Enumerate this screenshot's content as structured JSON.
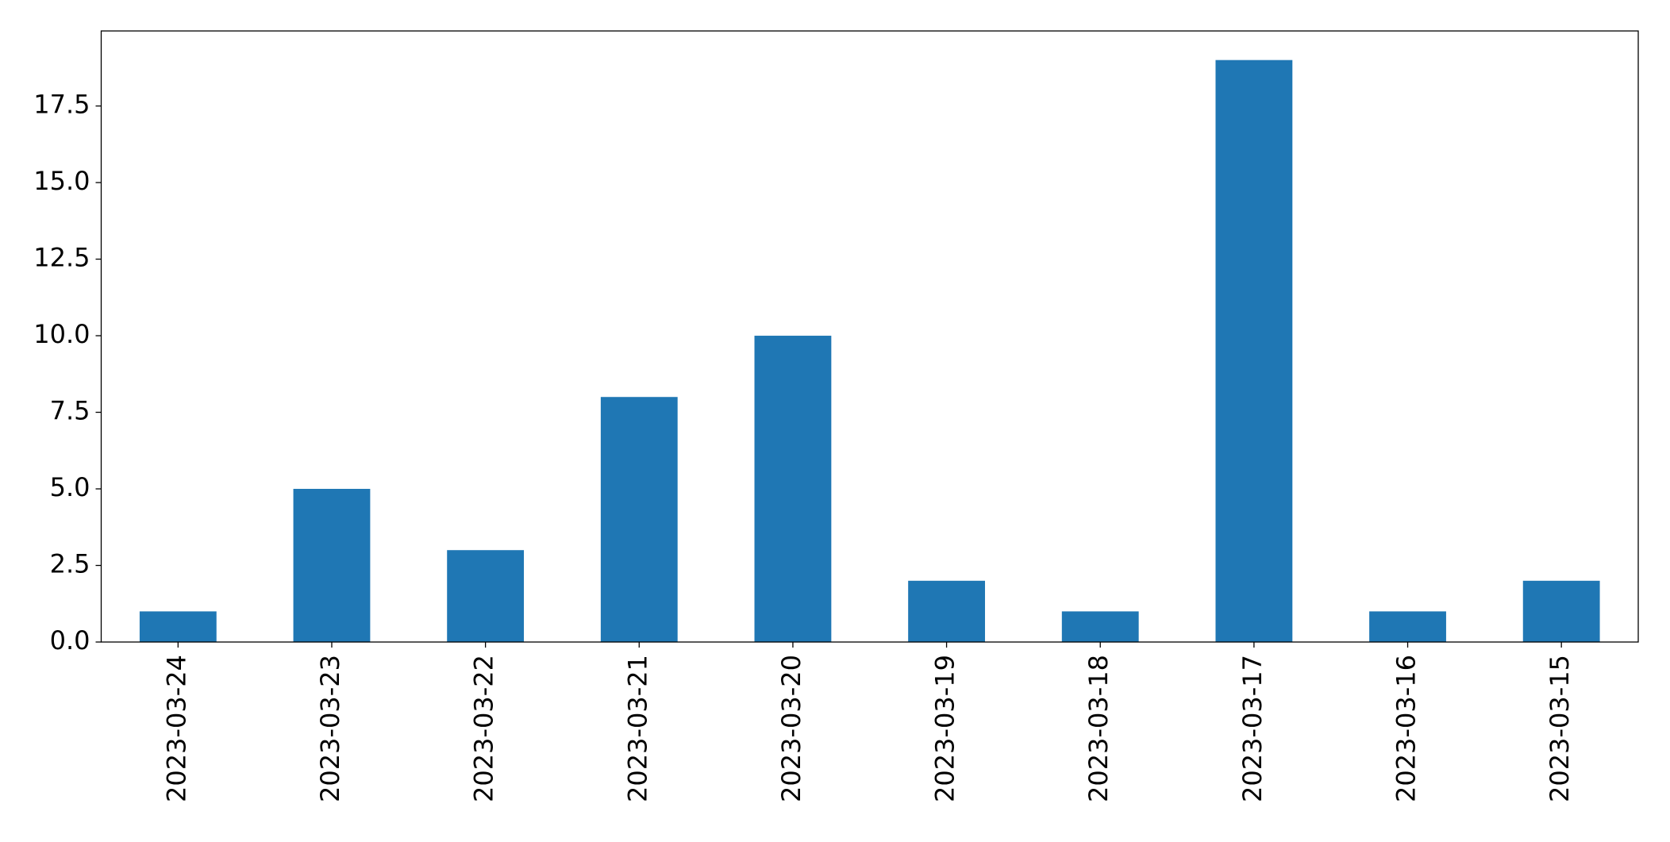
{
  "chart_data": {
    "type": "bar",
    "categories": [
      "2023-03-24",
      "2023-03-23",
      "2023-03-22",
      "2023-03-21",
      "2023-03-20",
      "2023-03-19",
      "2023-03-18",
      "2023-03-17",
      "2023-03-16",
      "2023-03-15"
    ],
    "values": [
      1,
      5,
      3,
      8,
      10,
      2,
      1,
      19,
      1,
      2
    ],
    "color": "#1f77b4",
    "ylim": [
      0,
      19.95
    ],
    "yticks": [
      {
        "value": 0,
        "label": "0.0"
      },
      2.5,
      {
        "value": 5,
        "label": "5.0"
      },
      7.5,
      {
        "value": 10,
        "label": "10.0"
      },
      12.5,
      {
        "value": 15,
        "label": "15.0"
      },
      17.5
    ],
    "grid": false
  }
}
